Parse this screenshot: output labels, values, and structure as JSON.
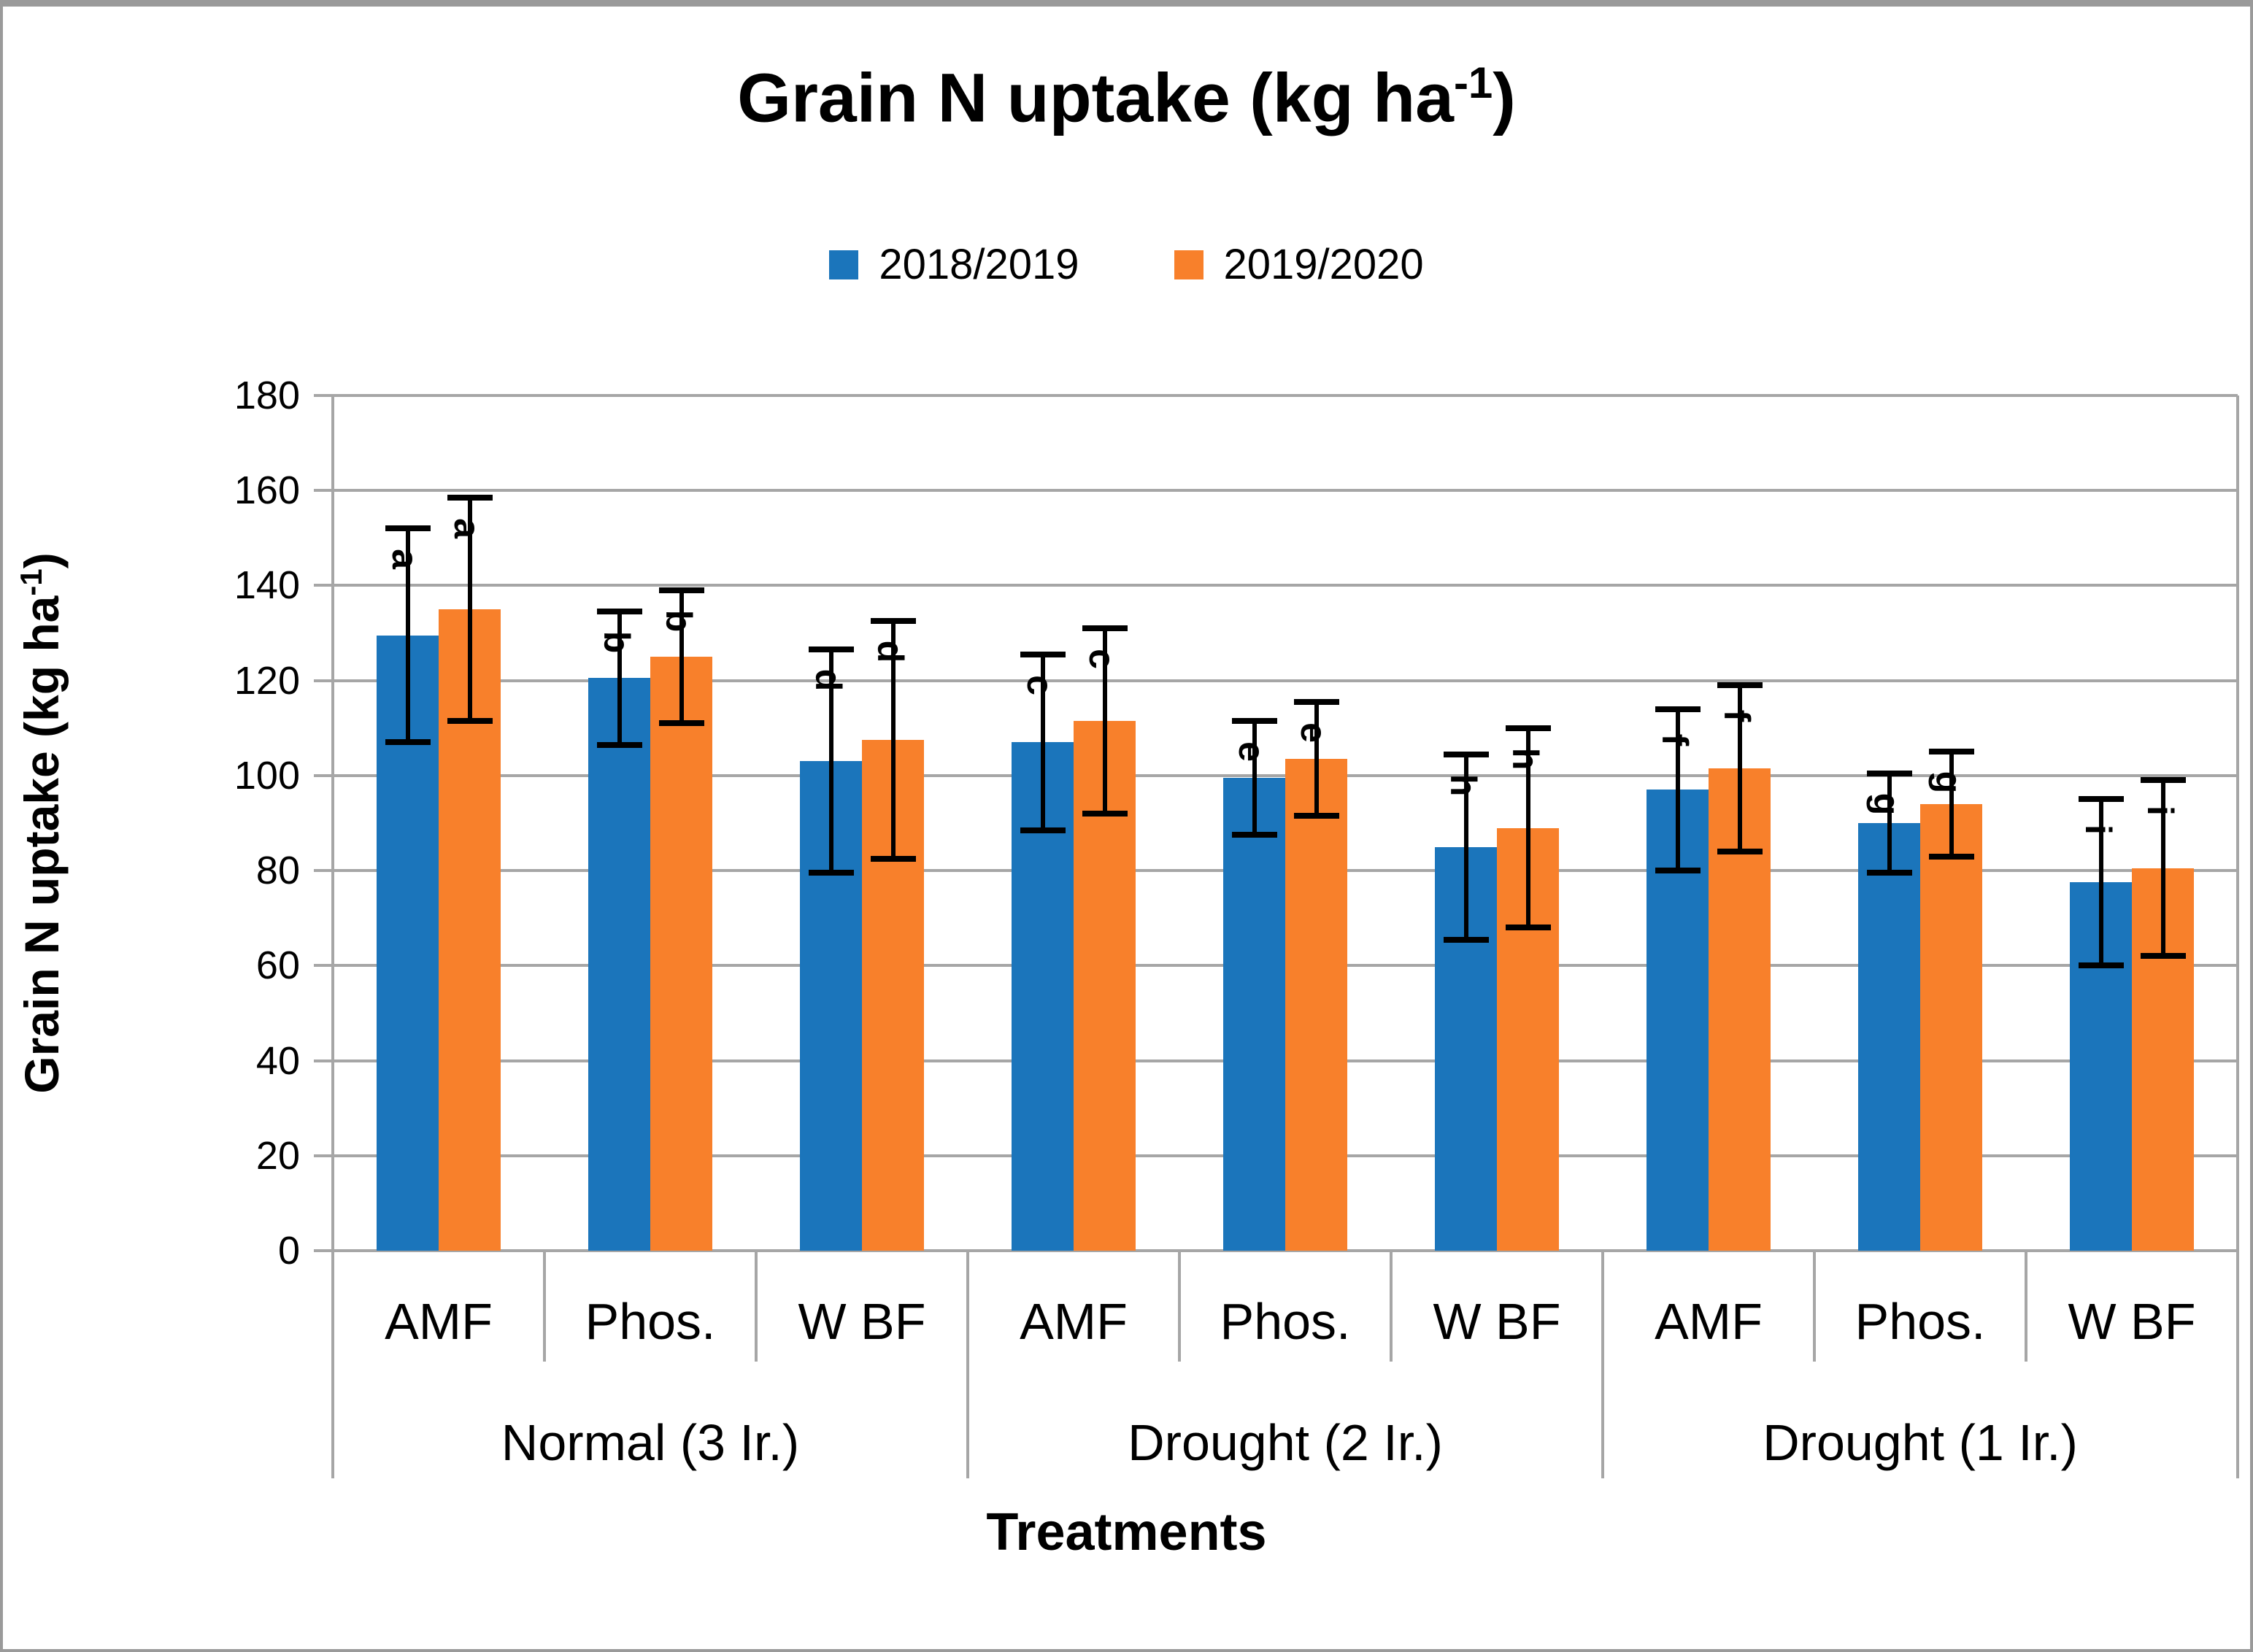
{
  "title": {
    "prefix": "Grain N uptake (kg ha",
    "sup": "-1",
    "suffix": ")"
  },
  "legend": [
    {
      "label": "2018/2019",
      "color": "#1b75bb"
    },
    {
      "label": "2019/2020",
      "color": "#f8802b"
    }
  ],
  "y_axis": {
    "title_prefix": "Grain N uptake (kg ha",
    "title_sup": "-1",
    "title_suffix": ")",
    "ticks": [
      180,
      160,
      140,
      120,
      100,
      80,
      60,
      40,
      20,
      0
    ],
    "min": 0,
    "max": 180
  },
  "x_axis": {
    "title": "Treatments",
    "groups": [
      "Normal (3 Ir.)",
      "Drought (2 Ir.)",
      "Drought (1 Ir.)"
    ],
    "categories_per_group": [
      "AMF",
      "Phos.",
      "W BF"
    ]
  },
  "chart_data": {
    "type": "bar",
    "title": "Grain N uptake (kg ha-1)",
    "xlabel": "Treatments",
    "ylabel": "Grain N uptake (kg ha-1)",
    "ylim": [
      0,
      180
    ],
    "grid": true,
    "legend_position": "top",
    "groups": [
      "Normal (3 Ir.)",
      "Drought (2 Ir.)",
      "Drought (1 Ir.)"
    ],
    "categories": [
      "AMF",
      "Phos.",
      "W BF",
      "AMF",
      "Phos.",
      "W BF",
      "AMF",
      "Phos.",
      "W BF"
    ],
    "series": [
      {
        "name": "2018/2019",
        "color": "#1b75bb",
        "values": [
          129.5,
          120.5,
          103,
          107,
          99.5,
          85,
          97,
          90,
          77.5
        ],
        "errors": [
          22.5,
          14,
          23.5,
          18.5,
          12,
          19.5,
          17,
          10.5,
          17.5
        ],
        "letters": [
          "a",
          "b",
          "d",
          "c",
          "e",
          "h",
          "f",
          "g",
          "i"
        ]
      },
      {
        "name": "2019/2020",
        "color": "#f8802b",
        "values": [
          135,
          125,
          107.5,
          111.5,
          103.5,
          89,
          101.5,
          94,
          80.5
        ],
        "errors": [
          23.5,
          14,
          25,
          19.5,
          12,
          21,
          17.5,
          11,
          18.5
        ],
        "letters": [
          "a",
          "b",
          "d",
          "c",
          "e",
          "h",
          "f",
          "g",
          "i"
        ]
      }
    ]
  }
}
